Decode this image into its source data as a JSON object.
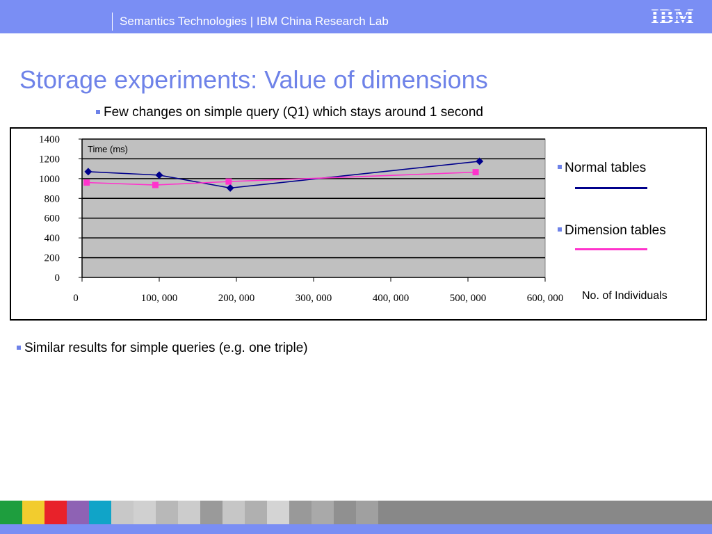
{
  "header": {
    "text": "Semantics Technologies | IBM China Research Lab",
    "logo": "IBM"
  },
  "slide": {
    "title": "Storage experiments: Value of dimensions",
    "bullet1": "Few changes on simple query (Q1) which stays around 1 second",
    "bullet2": "Similar results for simple queries (e.g. one triple)"
  },
  "colors": {
    "accent": "#7a8ef4",
    "title": "#6e82e8",
    "plot_bg": "#c0c0c0",
    "normal": "#00008b",
    "dimension": "#ff33cc"
  },
  "chart_data": {
    "type": "line",
    "ylabel": "Time (ms)",
    "xlabel": "No. of Individuals",
    "xlim": [
      0,
      600000
    ],
    "ylim": [
      0,
      1400
    ],
    "x_ticks": [
      "0",
      "100, 000",
      "200, 000",
      "300, 000",
      "400, 000",
      "500, 000",
      "600, 000"
    ],
    "x_tick_values": [
      0,
      100000,
      200000,
      300000,
      400000,
      500000,
      600000
    ],
    "y_ticks": [
      "0",
      "200",
      "400",
      "600",
      "800",
      "1000",
      "1200",
      "1400"
    ],
    "y_tick_values": [
      0,
      200,
      400,
      600,
      800,
      1000,
      1200,
      1400
    ],
    "grid": true,
    "legend": "right",
    "series": [
      {
        "name": "Normal tables",
        "color": "#00008b",
        "marker": "diamond",
        "x": [
          8000,
          100000,
          192000,
          515000
        ],
        "y": [
          1070,
          1035,
          905,
          1175
        ]
      },
      {
        "name": "Dimension tables",
        "color": "#ff33cc",
        "marker": "square",
        "x": [
          6000,
          95000,
          190000,
          510000
        ],
        "y": [
          960,
          935,
          970,
          1065
        ]
      }
    ]
  },
  "bottom_strip": {
    "colors": [
      "#1e9e3e",
      "#f2cc2e",
      "#e8222a",
      "#8e62b4",
      "#10a4c8",
      "#c8c8c8",
      "#d0d0d0",
      "#b8b8b8",
      "#cccccc",
      "#9a9a9a",
      "#c6c6c6",
      "#b0b0b0",
      "#d4d4d4",
      "#999999",
      "#a9a9a9",
      "#909090",
      "#a0a0a0",
      "#888888"
    ]
  }
}
